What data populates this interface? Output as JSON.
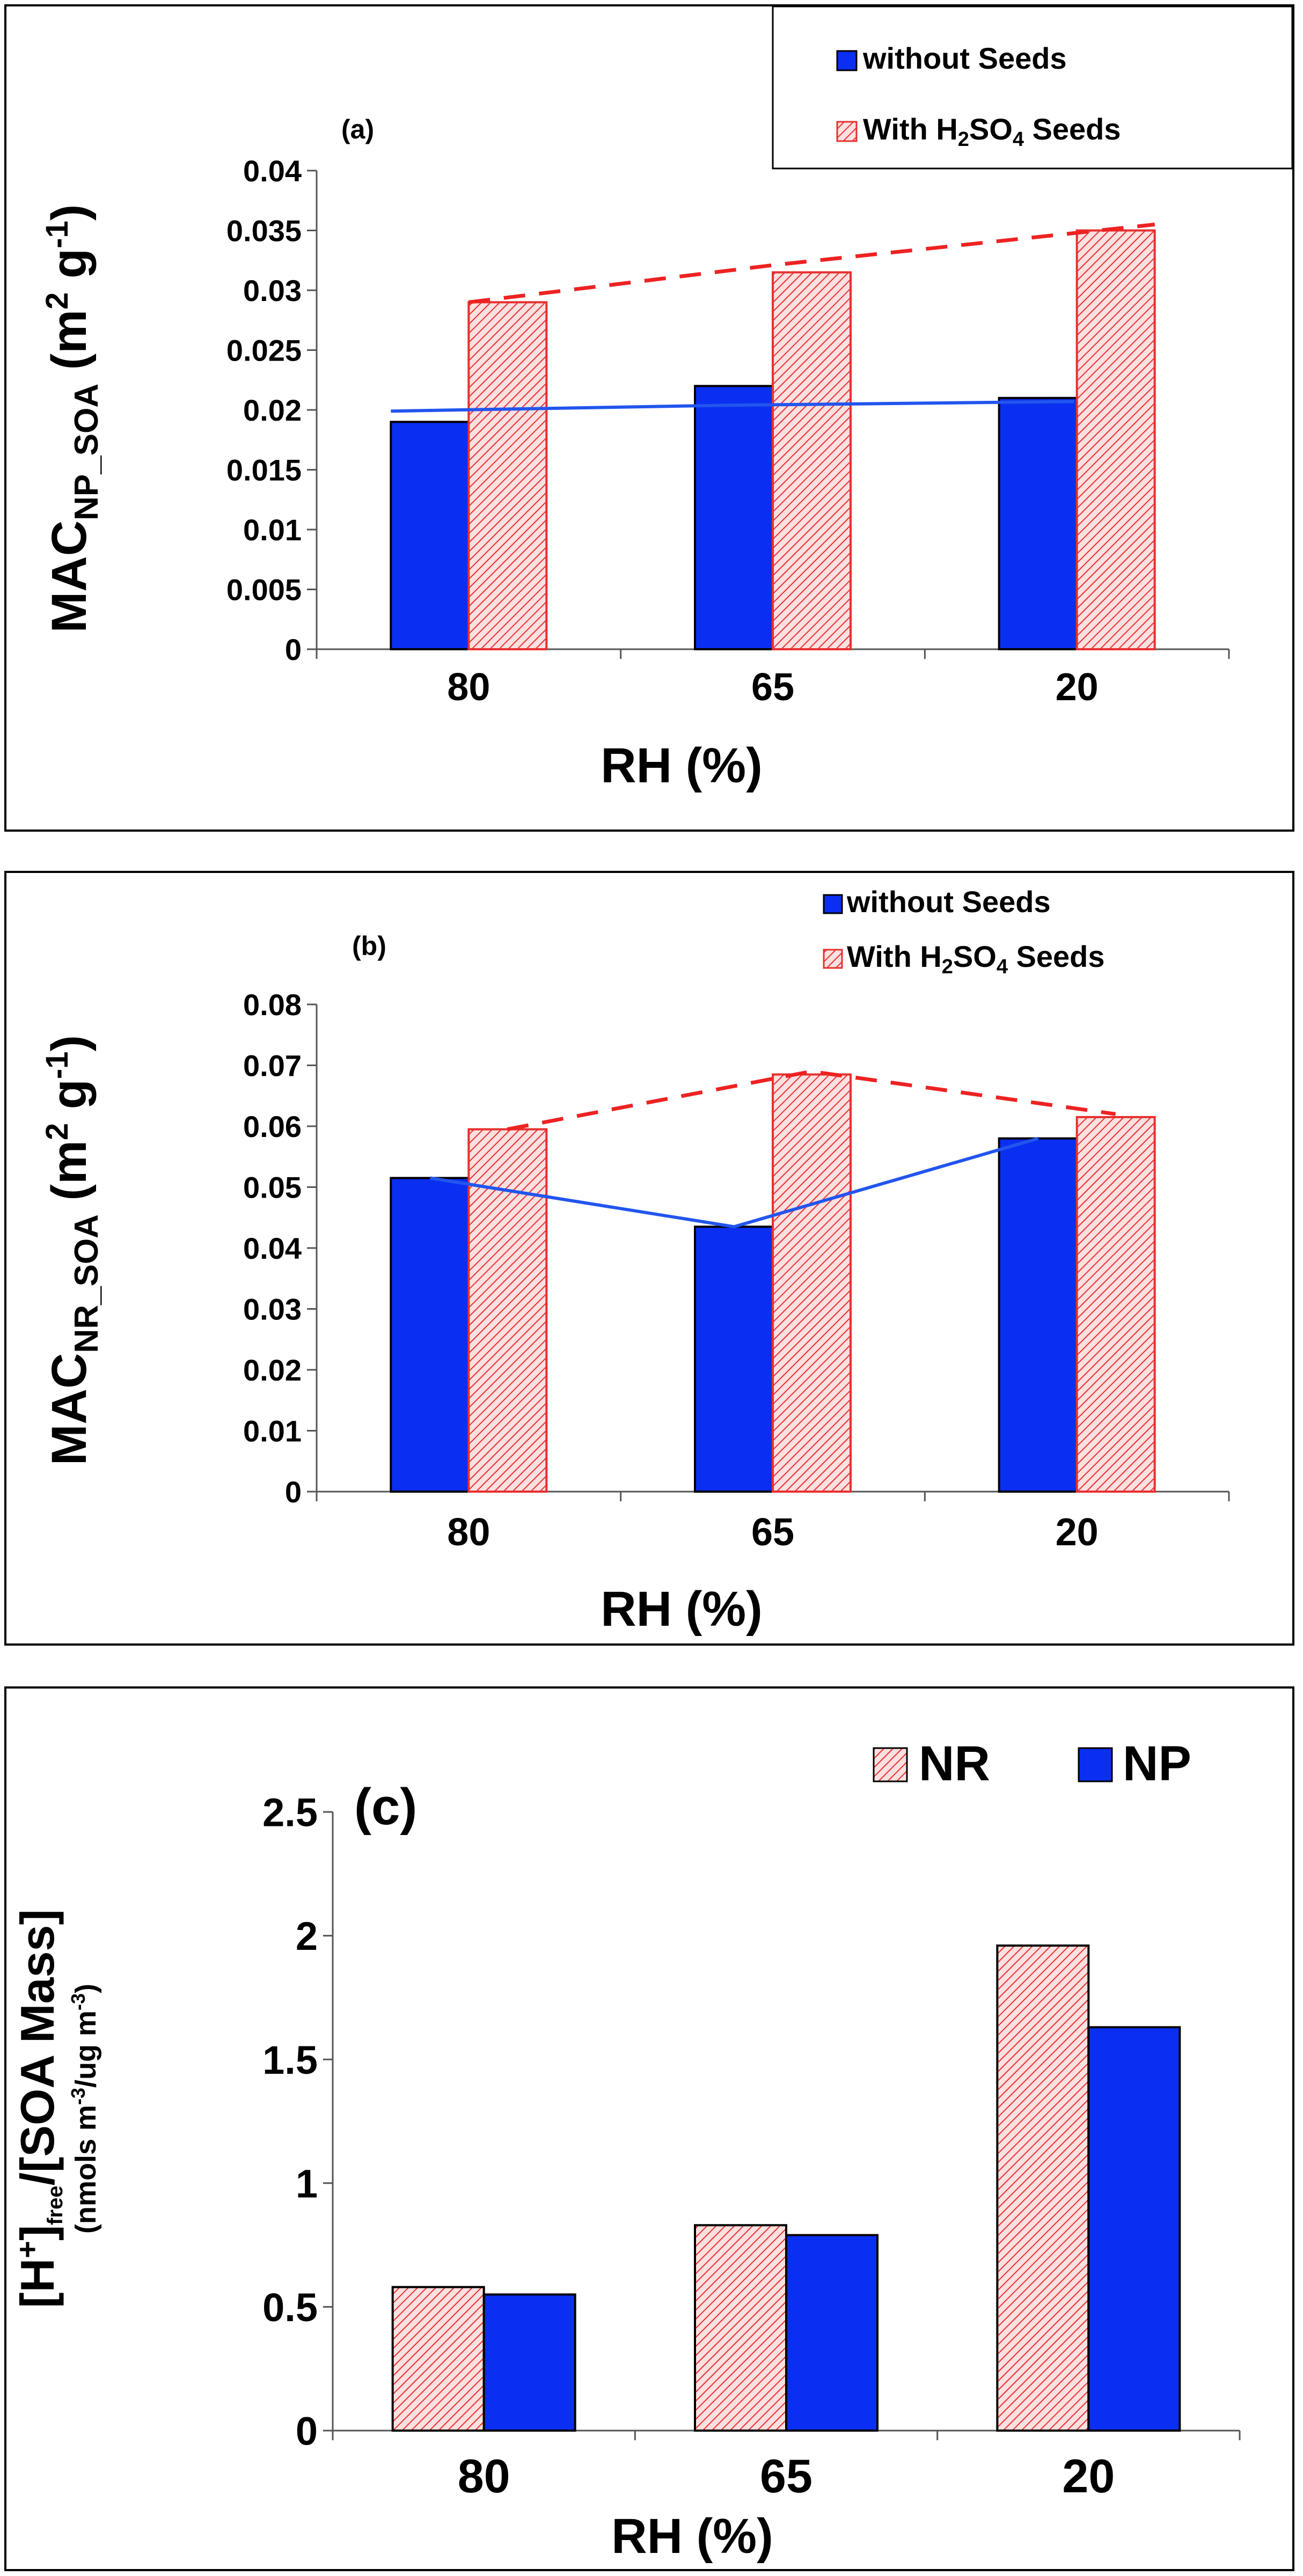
{
  "chart_data": [
    {
      "type": "bar",
      "panel_label": "(a)",
      "xlabel": "RH (%)",
      "ylabel": {
        "main": "MAC",
        "sub": "NP_SOA",
        "units_a": " (m",
        "sup1": "2",
        "units_b": " g",
        "sup2": "-1",
        "units_c": ")"
      },
      "categories": [
        "80",
        "65",
        "20"
      ],
      "ylim": [
        0,
        0.04
      ],
      "yticks": [
        "0",
        "0.005",
        "0.01",
        "0.015",
        "0.02",
        "0.025",
        "0.03",
        "0.035",
        "0.04"
      ],
      "series": [
        {
          "name": "without Seeds",
          "values": [
            0.019,
            0.022,
            0.021
          ],
          "trend": [
            0.0199,
            0.0204,
            0.0207
          ]
        },
        {
          "name": {
            "pre": "With H",
            "sub1": "2",
            "mid": "SO",
            "sub2": "4",
            "post": " Seeds"
          },
          "values": [
            0.029,
            0.0315,
            0.035
          ],
          "trend": [
            0.029,
            0.0321,
            0.0355
          ]
        }
      ],
      "legend": "top-right"
    },
    {
      "type": "bar",
      "panel_label": "(b)",
      "xlabel": "RH (%)",
      "ylabel": {
        "main": "MAC",
        "sub": "NR_SOA",
        "units_a": " (m",
        "sup1": "2",
        "units_b": " g",
        "sup2": "-1",
        "units_c": ")"
      },
      "categories": [
        "80",
        "65",
        "20"
      ],
      "ylim": [
        0,
        0.08
      ],
      "yticks": [
        "0",
        "0.01",
        "0.02",
        "0.03",
        "0.04",
        "0.05",
        "0.06",
        "0.07",
        "0.08"
      ],
      "series": [
        {
          "name": "without Seeds",
          "values": [
            0.0515,
            0.0435,
            0.058
          ],
          "trend": [
            0.0515,
            0.0435,
            0.058
          ]
        },
        {
          "name": {
            "pre": "With H",
            "sub1": "2",
            "mid": "SO",
            "sub2": "4",
            "post": " Seeds"
          },
          "values": [
            0.0595,
            0.0685,
            0.0615
          ],
          "trend": [
            0.0595,
            0.069,
            0.062
          ]
        }
      ],
      "legend": "top-right"
    },
    {
      "type": "bar",
      "panel_label": "(c)",
      "xlabel": "RH (%)",
      "ylabel": {
        "l1_a": "[H",
        "l1_sup": "+",
        "l1_b": "]",
        "l1_sub": "free",
        "l1_c": "/[SOA Mass]",
        "l2_a": "(nmols m",
        "l2_sup1": "-3",
        "l2_b": "/ug m",
        "l2_sup2": "-3",
        "l2_c": ")"
      },
      "categories": [
        "80",
        "65",
        "20"
      ],
      "ylim": [
        0,
        2.5
      ],
      "yticks": [
        "0",
        "0.5",
        "1",
        "1.5",
        "2",
        "2.5"
      ],
      "series": [
        {
          "name": "NR",
          "values": [
            0.58,
            0.83,
            1.96
          ]
        },
        {
          "name": "NP",
          "values": [
            0.55,
            0.79,
            1.63
          ]
        }
      ],
      "legend": "top-right"
    }
  ],
  "colors": {
    "blue": "#0b2ff0",
    "red": "#ee2222",
    "red_light": "#fbd0d0",
    "blue_line": "#2255ee"
  }
}
